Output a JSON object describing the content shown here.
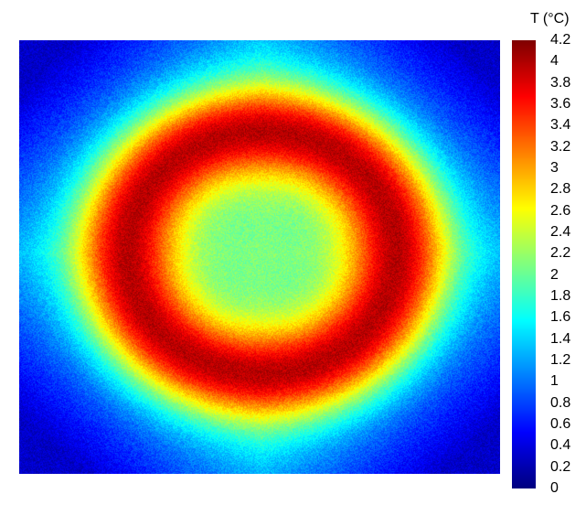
{
  "chart_data": {
    "type": "heatmap",
    "title": "",
    "xlabel": "",
    "ylabel": "",
    "colorbar": {
      "title": "T (°C)",
      "min": 0,
      "max": 4.2,
      "ticks": [
        0,
        0.2,
        0.4,
        0.6,
        0.8,
        1,
        1.2,
        1.4,
        1.6,
        1.8,
        2,
        2.2,
        2.4,
        2.6,
        2.8,
        3,
        3.2,
        3.4,
        3.6,
        3.8,
        4,
        4.2
      ],
      "tick_labels": [
        "0",
        "0.2",
        "0.4",
        "0.6",
        "0.8",
        "1",
        "1.2",
        "1.4",
        "1.6",
        "1.8",
        "2",
        "2.2",
        "2.4",
        "2.6",
        "2.8",
        "3",
        "3.2",
        "3.4",
        "3.6",
        "3.8",
        "4",
        "4.2"
      ],
      "colormap": "jet"
    },
    "field": {
      "center_value": 2.1,
      "ring_peak_value": 4.1,
      "corner_value": 0.3,
      "edge_mid_value": 1.4,
      "ring_radius_fraction": 0.28
    },
    "colors": {
      "low": "#0000ff",
      "mid_low": "#00ffff",
      "mid": "#00ff00",
      "mid_high": "#ffff00",
      "high": "#ff0000"
    }
  }
}
